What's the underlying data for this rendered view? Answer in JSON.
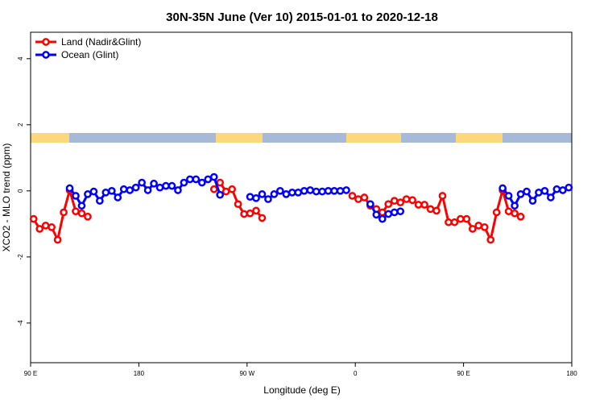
{
  "chart_data": {
    "type": "line",
    "title": "30N-35N June (Ver 10)   2015-01-01 to 2020-12-18",
    "x_label": "Longitude (deg E)",
    "y_label": "XCO2 - MLO trend (ppm)",
    "xlim": [
      90,
      540
    ],
    "ylim": [
      -5.2,
      4.8
    ],
    "xticks": [
      {
        "value": 90,
        "label": "90 E"
      },
      {
        "value": 180,
        "label": "180"
      },
      {
        "value": 270,
        "label": "90 W"
      },
      {
        "value": 360,
        "label": "0"
      },
      {
        "value": 450,
        "label": "90 E"
      },
      {
        "value": 540,
        "label": "180"
      }
    ],
    "yticks": [
      -4,
      -2,
      0,
      2,
      4
    ],
    "legend": "top-left",
    "series": [
      {
        "name": "Land (Nadir&Glint)",
        "color": "#ff0000",
        "x": [
          92.5,
          97.5,
          102.5,
          107.5,
          112.5,
          117.5,
          122.5,
          127.5,
          132.5,
          137.5,
          null,
          242.5,
          247.5,
          252.5,
          257.5,
          262.5,
          267.5,
          272.5,
          277.5,
          282.5,
          null,
          357.5,
          362.5,
          367.5,
          372.5,
          377.5,
          382.5,
          387.5,
          392.5,
          397.5,
          402.5,
          407.5,
          412.5,
          417.5,
          422.5,
          427.5,
          432.5,
          437.5,
          442.5,
          447.5,
          452.5,
          457.5,
          462.5,
          467.5,
          472.5,
          477.5,
          482.5,
          487.5,
          492.5,
          497.5
        ],
        "values": [
          -0.85,
          -1.15,
          -1.05,
          -1.1,
          -1.48,
          -0.65,
          0.02,
          -0.62,
          -0.68,
          -0.78,
          null,
          0.05,
          0.25,
          -0.02,
          0.05,
          -0.4,
          -0.7,
          -0.68,
          -0.6,
          -0.82,
          null,
          -0.15,
          -0.25,
          -0.2,
          -0.45,
          -0.55,
          -0.65,
          -0.4,
          -0.3,
          -0.35,
          -0.25,
          -0.28,
          -0.42,
          -0.42,
          -0.55,
          -0.6,
          -0.15,
          -0.95,
          -0.95,
          -0.85,
          -0.85,
          -1.15,
          -1.05,
          -1.1,
          -1.48,
          -0.65,
          0.02,
          -0.62,
          -0.68,
          -0.78
        ]
      },
      {
        "name": "Ocean (Glint)",
        "color": "#0000ff",
        "x": [
          122.5,
          127.5,
          132.5,
          137.5,
          142.5,
          147.5,
          152.5,
          157.5,
          162.5,
          167.5,
          172.5,
          177.5,
          182.5,
          187.5,
          192.5,
          197.5,
          202.5,
          207.5,
          212.5,
          217.5,
          222.5,
          227.5,
          232.5,
          237.5,
          242.5,
          247.5,
          null,
          272.5,
          277.5,
          282.5,
          287.5,
          292.5,
          297.5,
          302.5,
          307.5,
          312.5,
          317.5,
          322.5,
          327.5,
          332.5,
          337.5,
          342.5,
          347.5,
          352.5,
          null,
          372.5,
          377.5,
          382.5,
          387.5,
          392.5,
          397.5,
          null,
          482.5,
          487.5,
          492.5,
          497.5,
          502.5,
          507.5,
          512.5,
          517.5,
          522.5,
          527.5,
          532.5,
          537.5
        ],
        "values": [
          0.08,
          -0.15,
          -0.45,
          -0.1,
          -0.02,
          -0.3,
          -0.05,
          0,
          -0.2,
          0.05,
          0.02,
          0.1,
          0.25,
          0.02,
          0.22,
          0.1,
          0.15,
          0.15,
          0.02,
          0.25,
          0.35,
          0.35,
          0.25,
          0.35,
          0.42,
          -0.12,
          null,
          -0.18,
          -0.22,
          -0.1,
          -0.25,
          -0.1,
          0,
          -0.1,
          -0.05,
          -0.05,
          0,
          0.02,
          -0.02,
          -0.02,
          0,
          0,
          0,
          0.02,
          null,
          -0.4,
          -0.72,
          -0.85,
          -0.7,
          -0.65,
          -0.62,
          null,
          0.08,
          -0.15,
          -0.45,
          -0.1,
          -0.02,
          -0.3,
          -0.05,
          0,
          -0.2,
          0.05,
          0.02,
          0.1
        ]
      }
    ]
  }
}
